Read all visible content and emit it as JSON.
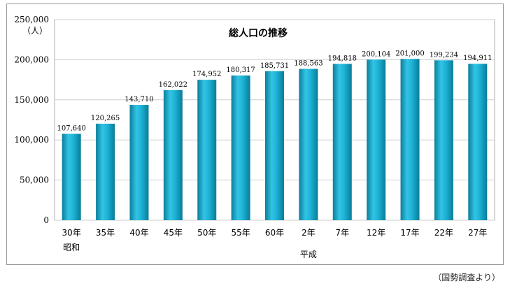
{
  "chart_data": {
    "type": "bar",
    "title": "総人口の推移",
    "yunit": "（人）",
    "ylim": [
      0,
      250000
    ],
    "yticks": [
      0,
      50000,
      100000,
      150000,
      200000,
      250000
    ],
    "ytick_labels": [
      "0",
      "50,000",
      "100,000",
      "150,000",
      "200,000",
      "250,000"
    ],
    "grid": true,
    "categories": [
      "30年",
      "35年",
      "40年",
      "45年",
      "50年",
      "55年",
      "60年",
      "2年",
      "7年",
      "12年",
      "17年",
      "22年",
      "27年"
    ],
    "values": [
      107640,
      120265,
      143710,
      162022,
      174952,
      180317,
      185731,
      188563,
      194818,
      200104,
      201000,
      199234,
      194911
    ],
    "value_labels": [
      "107,640",
      "120,265",
      "143,710",
      "162,022",
      "174,952",
      "180,317",
      "185,731",
      "188,563",
      "194,818",
      "200,104",
      "201,000",
      "199,234",
      "194,911"
    ],
    "era_labels": [
      {
        "text": "昭和",
        "category_index": 0
      },
      {
        "text": "平成",
        "category_index": 7
      }
    ],
    "bar_color": "#1aaed0"
  },
  "source": "（国勢調査より）"
}
